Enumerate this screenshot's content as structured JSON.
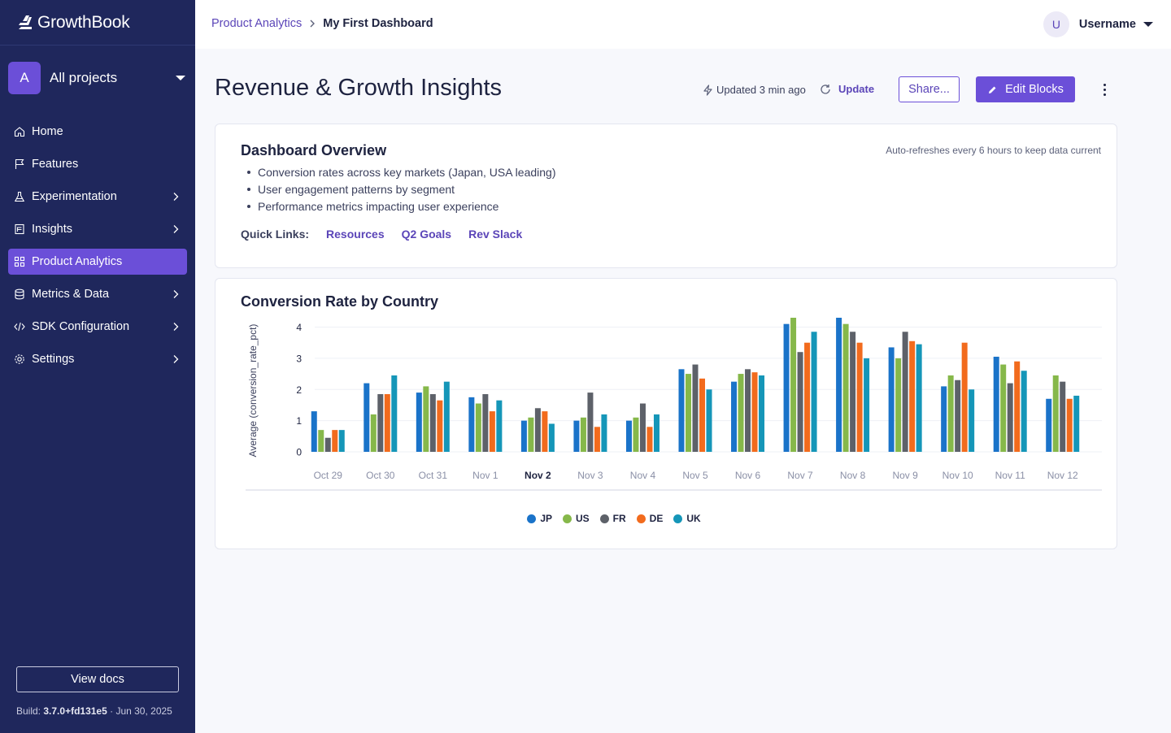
{
  "app": {
    "name": "GrowthBook"
  },
  "project": {
    "avatar_letter": "A",
    "label": "All projects"
  },
  "sidebar": {
    "items": [
      {
        "label": "Home",
        "icon": "home-icon",
        "chevron": false,
        "active": false
      },
      {
        "label": "Features",
        "icon": "flag-icon",
        "chevron": false,
        "active": false
      },
      {
        "label": "Experimentation",
        "icon": "flask-icon",
        "chevron": true,
        "active": false
      },
      {
        "label": "Insights",
        "icon": "report-icon",
        "chevron": true,
        "active": false
      },
      {
        "label": "Product Analytics",
        "icon": "grid-icon",
        "chevron": false,
        "active": true
      },
      {
        "label": "Metrics & Data",
        "icon": "database-icon",
        "chevron": true,
        "active": false
      },
      {
        "label": "SDK Configuration",
        "icon": "code-icon",
        "chevron": true,
        "active": false
      },
      {
        "label": "Settings",
        "icon": "gear-icon",
        "chevron": true,
        "active": false
      }
    ],
    "docs_label": "View docs",
    "build_prefix": "Build:",
    "build_version": "3.7.0+fd131e5",
    "build_date": "· Jun 30, 2025"
  },
  "topbar": {
    "breadcrumb_parent": "Product Analytics",
    "breadcrumb_current": "My First Dashboard",
    "user_initial": "U",
    "user_name": "Username"
  },
  "header": {
    "title": "Revenue & Growth Insights",
    "updated": "Updated 3 min ago",
    "update_label": "Update",
    "share_label": "Share...",
    "edit_label": "Edit Blocks"
  },
  "overview": {
    "title": "Dashboard Overview",
    "refresh_note": "Auto-refreshes every 6 hours to keep data current",
    "bullets": [
      "Conversion rates across key markets (Japan, USA leading)",
      "User engagement patterns by segment",
      "Performance metrics impacting user experience"
    ],
    "quick_links_label": "Quick Links:",
    "quick_links": [
      "Resources",
      "Q2 Goals",
      "Rev Slack"
    ]
  },
  "colors": {
    "accent": "#6b4fd8",
    "sidebar_bg": "#1f275c",
    "JP": "#1a73c9",
    "US": "#86b84a",
    "FR": "#5d6169",
    "DE": "#f26b1d",
    "UK": "#1596b8"
  },
  "chart_data": {
    "type": "bar",
    "title": "Conversion Rate by Country",
    "ylabel": "Average (conversion_rate_pct)",
    "xlabel": "",
    "ylim": [
      0,
      4.3
    ],
    "yticks": [
      0,
      1,
      2,
      3,
      4
    ],
    "grid": true,
    "legend_position": "bottom",
    "highlighted_category": "Nov 2",
    "categories": [
      "Oct 29",
      "Oct 30",
      "Oct 31",
      "Nov 1",
      "Nov 2",
      "Nov 3",
      "Nov 4",
      "Nov 5",
      "Nov 6",
      "Nov 7",
      "Nov 8",
      "Nov 9",
      "Nov 10",
      "Nov 11",
      "Nov 12"
    ],
    "series": [
      {
        "name": "JP",
        "values": [
          1.3,
          2.2,
          1.9,
          1.75,
          1.0,
          1.0,
          1.0,
          2.65,
          2.25,
          4.1,
          4.3,
          3.35,
          2.1,
          3.05,
          1.7
        ]
      },
      {
        "name": "US",
        "values": [
          0.7,
          1.2,
          2.1,
          1.55,
          1.1,
          1.1,
          1.1,
          2.5,
          2.5,
          4.3,
          4.1,
          3.0,
          2.45,
          2.8,
          2.45
        ]
      },
      {
        "name": "FR",
        "values": [
          0.45,
          1.85,
          1.85,
          1.85,
          1.4,
          1.9,
          1.55,
          2.8,
          2.65,
          3.2,
          3.85,
          3.85,
          2.3,
          2.2,
          2.25
        ]
      },
      {
        "name": "DE",
        "values": [
          0.7,
          1.85,
          1.65,
          1.3,
          1.3,
          0.8,
          0.8,
          2.35,
          2.55,
          3.5,
          3.5,
          3.55,
          3.5,
          2.9,
          1.7
        ]
      },
      {
        "name": "UK",
        "values": [
          0.7,
          2.45,
          2.25,
          1.65,
          0.9,
          1.2,
          1.2,
          2.0,
          2.45,
          3.85,
          3.0,
          3.45,
          2.0,
          2.6,
          1.8
        ]
      }
    ]
  }
}
